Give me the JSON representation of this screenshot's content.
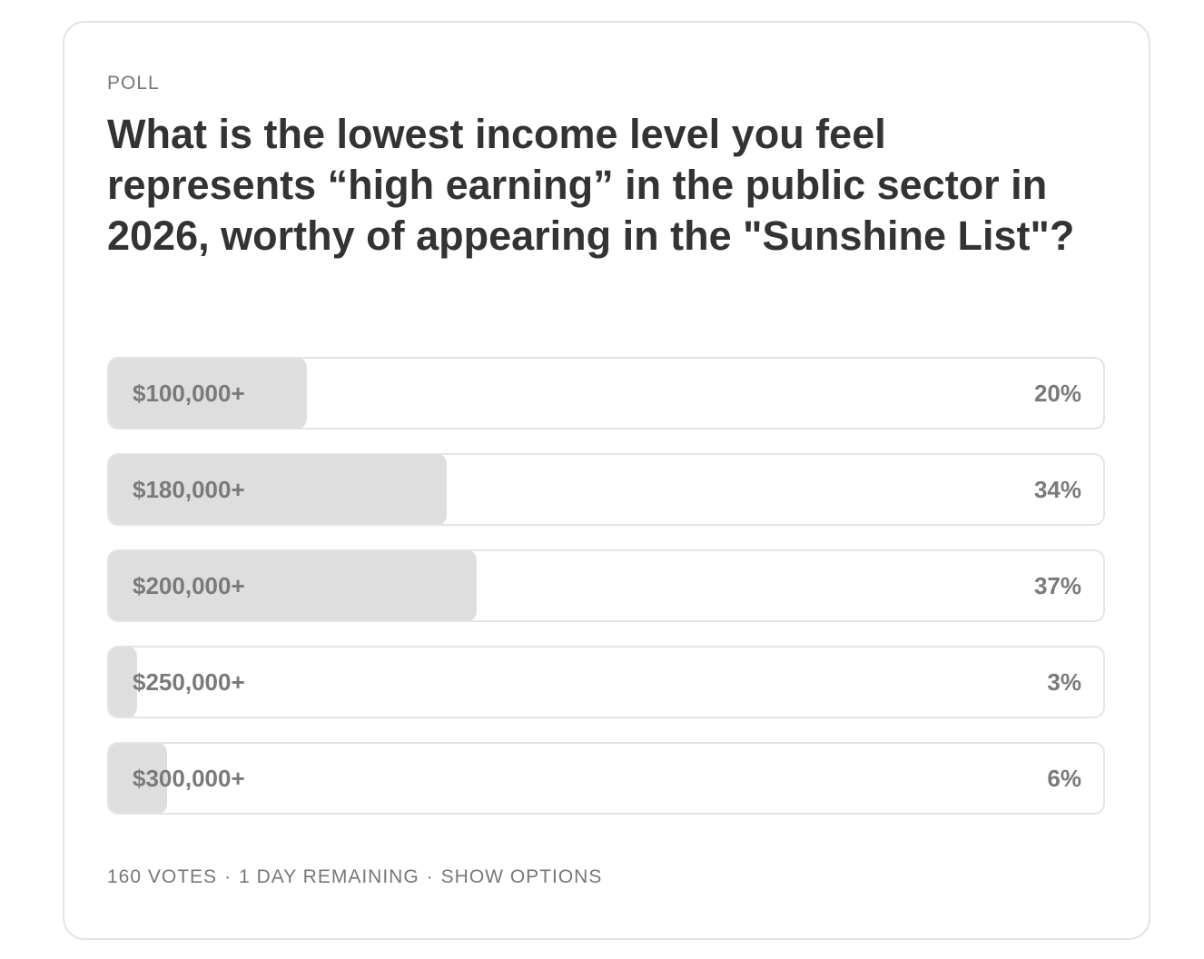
{
  "chart_data": {
    "type": "bar",
    "label": "POLL",
    "title": "What is the lowest income level you feel represents “high earning” in the public sector in 2026, worthy of appearing in the \"Sunshine List\"?",
    "categories": [
      "$100,000+",
      "$180,000+",
      "$200,000+",
      "$250,000+",
      "$300,000+"
    ],
    "values": [
      20,
      34,
      37,
      3,
      6
    ],
    "value_labels": [
      "20%",
      "34%",
      "37%",
      "3%",
      "6%"
    ],
    "xlim": [
      0,
      100
    ],
    "color": "#dedede",
    "footer": [
      "160 VOTES",
      "1 DAY REMAINING",
      "SHOW OPTIONS"
    ],
    "footer_separator": "·"
  }
}
